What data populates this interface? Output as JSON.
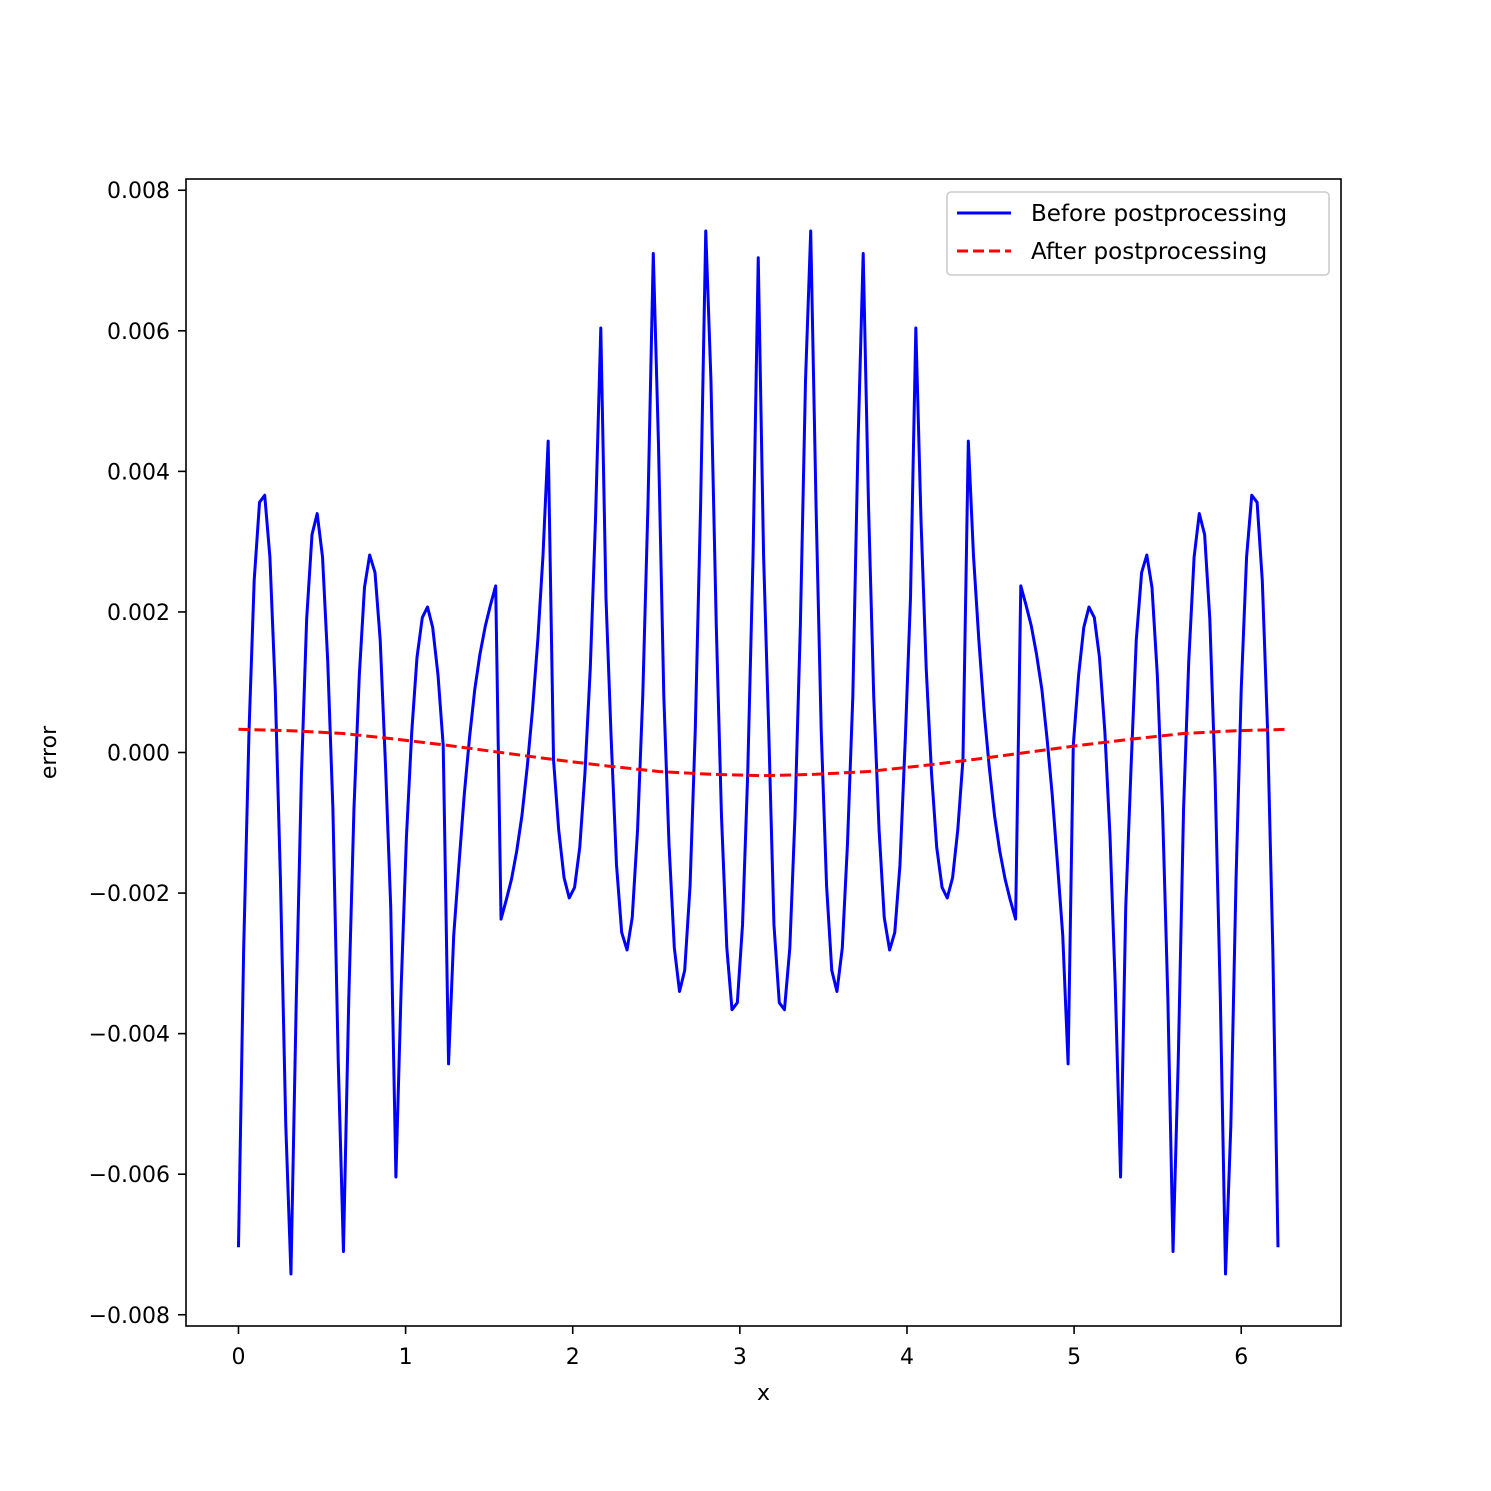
{
  "chart_data": {
    "type": "line",
    "title": "",
    "xlabel": "x",
    "ylabel": "error",
    "xlim": [
      -0.314,
      6.597
    ],
    "ylim": [
      -0.00816,
      0.00816
    ],
    "xticks": [
      0,
      1,
      2,
      3,
      4,
      5,
      6
    ],
    "yticks": [
      -0.008,
      -0.006,
      -0.004,
      -0.002,
      0.0,
      0.002,
      0.004,
      0.006,
      0.008
    ],
    "xtick_labels": [
      "0",
      "1",
      "2",
      "3",
      "4",
      "5",
      "6"
    ],
    "ytick_labels": [
      "−0.008",
      "−0.006",
      "−0.004",
      "−0.002",
      "0.000",
      "0.002",
      "0.004",
      "0.006",
      "0.008"
    ],
    "grid": false,
    "legend_position": "upper right",
    "series": [
      {
        "name": "Before postprocessing",
        "color": "#0000ff",
        "style": "solid",
        "points": [
          [
            0.0,
            -0.00704
          ],
          [
            0.031,
            -0.0028
          ],
          [
            0.063,
            0.0003
          ],
          [
            0.094,
            0.00245
          ],
          [
            0.126,
            0.00356
          ],
          [
            0.157,
            0.00366
          ],
          [
            0.188,
            0.00278
          ],
          [
            0.22,
            0.0009
          ],
          [
            0.251,
            -0.0018
          ],
          [
            0.283,
            -0.0053
          ],
          [
            0.314,
            -0.00742
          ],
          [
            0.346,
            -0.0035
          ],
          [
            0.377,
            -0.0003
          ],
          [
            0.408,
            0.0019
          ],
          [
            0.44,
            0.0031
          ],
          [
            0.471,
            0.0034
          ],
          [
            0.503,
            0.00278
          ],
          [
            0.534,
            0.0013
          ],
          [
            0.565,
            -0.0008
          ],
          [
            0.597,
            -0.0044
          ],
          [
            0.628,
            -0.0071
          ],
          [
            0.66,
            -0.0035
          ],
          [
            0.691,
            -0.0008
          ],
          [
            0.723,
            0.0011
          ],
          [
            0.754,
            0.00235
          ],
          [
            0.785,
            0.00281
          ],
          [
            0.817,
            0.00256
          ],
          [
            0.848,
            0.0016
          ],
          [
            0.88,
            -0.0002
          ],
          [
            0.911,
            -0.0022
          ],
          [
            0.942,
            -0.00604
          ],
          [
            0.974,
            -0.0033
          ],
          [
            1.005,
            -0.0012
          ],
          [
            1.037,
            0.0003
          ],
          [
            1.068,
            0.00135
          ],
          [
            1.1,
            0.00192
          ],
          [
            1.131,
            0.00207
          ],
          [
            1.162,
            0.00178
          ],
          [
            1.194,
            0.0011
          ],
          [
            1.225,
            0.0001
          ],
          [
            1.257,
            -0.00443
          ],
          [
            1.288,
            -0.0026
          ],
          [
            1.319,
            -0.0016
          ],
          [
            1.351,
            -0.0006
          ],
          [
            1.382,
            0.0002
          ],
          [
            1.414,
            0.0009
          ],
          [
            1.445,
            0.0014
          ],
          [
            1.477,
            0.0018
          ],
          [
            1.508,
            0.0021
          ],
          [
            1.539,
            0.00237
          ],
          [
            1.571,
            -0.00237
          ],
          [
            1.602,
            -0.0021
          ],
          [
            1.634,
            -0.0018
          ],
          [
            1.665,
            -0.0014
          ],
          [
            1.696,
            -0.0009
          ],
          [
            1.728,
            -0.0002
          ],
          [
            1.759,
            0.0006
          ],
          [
            1.791,
            0.0016
          ],
          [
            1.822,
            0.0028
          ],
          [
            1.853,
            0.00443
          ],
          [
            1.885,
            -0.0001
          ],
          [
            1.916,
            -0.0011
          ],
          [
            1.948,
            -0.00178
          ],
          [
            1.979,
            -0.00207
          ],
          [
            2.011,
            -0.00192
          ],
          [
            2.042,
            -0.00135
          ],
          [
            2.073,
            -0.0003
          ],
          [
            2.105,
            0.0012
          ],
          [
            2.136,
            0.0033
          ],
          [
            2.168,
            0.00604
          ],
          [
            2.199,
            0.0022
          ],
          [
            2.23,
            0.0002
          ],
          [
            2.262,
            -0.0016
          ],
          [
            2.293,
            -0.00256
          ],
          [
            2.325,
            -0.00281
          ],
          [
            2.356,
            -0.00235
          ],
          [
            2.388,
            -0.0011
          ],
          [
            2.419,
            0.0008
          ],
          [
            2.45,
            0.0035
          ],
          [
            2.482,
            0.0071
          ],
          [
            2.513,
            0.0044
          ],
          [
            2.545,
            0.0008
          ],
          [
            2.576,
            -0.0013
          ],
          [
            2.608,
            -0.00278
          ],
          [
            2.639,
            -0.0034
          ],
          [
            2.67,
            -0.0031
          ],
          [
            2.702,
            -0.0019
          ],
          [
            2.733,
            0.0003
          ],
          [
            2.765,
            0.0035
          ],
          [
            2.796,
            0.00742
          ],
          [
            2.827,
            0.0053
          ],
          [
            2.859,
            0.0018
          ],
          [
            2.89,
            -0.0009
          ],
          [
            2.922,
            -0.00278
          ],
          [
            2.953,
            -0.00366
          ],
          [
            2.985,
            -0.00356
          ],
          [
            3.016,
            -0.00245
          ],
          [
            3.047,
            -0.0003
          ],
          [
            3.079,
            0.0028
          ],
          [
            3.11,
            0.00704
          ],
          [
            3.142,
            0.0028
          ],
          [
            3.173,
            0.0003
          ],
          [
            3.204,
            -0.00245
          ],
          [
            3.236,
            -0.00356
          ],
          [
            3.267,
            -0.00366
          ],
          [
            3.299,
            -0.00278
          ],
          [
            3.33,
            -0.0009
          ],
          [
            3.362,
            0.0018
          ],
          [
            3.393,
            0.0053
          ],
          [
            3.424,
            0.00742
          ],
          [
            3.456,
            0.0035
          ],
          [
            3.487,
            0.0003
          ],
          [
            3.519,
            -0.0019
          ],
          [
            3.55,
            -0.0031
          ],
          [
            3.581,
            -0.0034
          ],
          [
            3.613,
            -0.00278
          ],
          [
            3.644,
            -0.0013
          ],
          [
            3.676,
            0.0008
          ],
          [
            3.707,
            0.0044
          ],
          [
            3.738,
            0.0071
          ],
          [
            3.77,
            0.0035
          ],
          [
            3.801,
            0.0008
          ],
          [
            3.833,
            -0.0011
          ],
          [
            3.864,
            -0.00235
          ],
          [
            3.896,
            -0.00281
          ],
          [
            3.927,
            -0.00256
          ],
          [
            3.958,
            -0.0016
          ],
          [
            3.99,
            0.0002
          ],
          [
            4.021,
            0.0022
          ],
          [
            4.053,
            0.00604
          ],
          [
            4.084,
            0.0033
          ],
          [
            4.115,
            0.0012
          ],
          [
            4.147,
            -0.0003
          ],
          [
            4.178,
            -0.00135
          ],
          [
            4.21,
            -0.00192
          ],
          [
            4.241,
            -0.00207
          ],
          [
            4.273,
            -0.00178
          ],
          [
            4.304,
            -0.0011
          ],
          [
            4.335,
            -0.0001
          ],
          [
            4.367,
            0.00443
          ],
          [
            4.398,
            0.0028
          ],
          [
            4.43,
            0.0016
          ],
          [
            4.461,
            0.0006
          ],
          [
            4.492,
            -0.0002
          ],
          [
            4.524,
            -0.0009
          ],
          [
            4.555,
            -0.0014
          ],
          [
            4.587,
            -0.0018
          ],
          [
            4.618,
            -0.0021
          ],
          [
            4.65,
            -0.00237
          ],
          [
            4.681,
            0.00237
          ],
          [
            4.712,
            0.0021
          ],
          [
            4.744,
            0.0018
          ],
          [
            4.775,
            0.0014
          ],
          [
            4.807,
            0.0009
          ],
          [
            4.838,
            0.0002
          ],
          [
            4.869,
            -0.0006
          ],
          [
            4.901,
            -0.0016
          ],
          [
            4.932,
            -0.0026
          ],
          [
            4.964,
            -0.00443
          ],
          [
            4.995,
            0.0001
          ],
          [
            5.027,
            0.0011
          ],
          [
            5.058,
            0.00178
          ],
          [
            5.089,
            0.00207
          ],
          [
            5.121,
            0.00192
          ],
          [
            5.152,
            0.00135
          ],
          [
            5.184,
            0.0003
          ],
          [
            5.215,
            -0.0012
          ],
          [
            5.246,
            -0.0033
          ],
          [
            5.278,
            -0.00604
          ],
          [
            5.309,
            -0.0022
          ],
          [
            5.341,
            -0.0002
          ],
          [
            5.372,
            0.0016
          ],
          [
            5.404,
            0.00256
          ],
          [
            5.435,
            0.00281
          ],
          [
            5.466,
            0.00235
          ],
          [
            5.498,
            0.0011
          ],
          [
            5.529,
            -0.0008
          ],
          [
            5.561,
            -0.0035
          ],
          [
            5.592,
            -0.0071
          ],
          [
            5.623,
            -0.0044
          ],
          [
            5.655,
            -0.0008
          ],
          [
            5.686,
            0.0013
          ],
          [
            5.718,
            0.00278
          ],
          [
            5.749,
            0.0034
          ],
          [
            5.781,
            0.0031
          ],
          [
            5.812,
            0.0019
          ],
          [
            5.843,
            -0.0003
          ],
          [
            5.875,
            -0.0035
          ],
          [
            5.906,
            -0.00742
          ],
          [
            5.938,
            -0.0053
          ],
          [
            5.969,
            -0.0018
          ],
          [
            6.0,
            0.0009
          ],
          [
            6.032,
            0.00278
          ],
          [
            6.063,
            0.00366
          ],
          [
            6.095,
            0.00356
          ],
          [
            6.126,
            0.00245
          ],
          [
            6.158,
            0.0003
          ],
          [
            6.189,
            -0.0028
          ],
          [
            6.22,
            -0.00704
          ]
        ]
      },
      {
        "name": "After postprocessing",
        "color": "#ff0000",
        "style": "dashed",
        "points": [
          [
            0.0,
            0.00033
          ],
          [
            0.314,
            0.00031
          ],
          [
            0.628,
            0.00027
          ],
          [
            0.942,
            0.00019
          ],
          [
            1.257,
            0.0001
          ],
          [
            1.571,
            0.0
          ],
          [
            1.885,
            -0.0001
          ],
          [
            2.199,
            -0.00019
          ],
          [
            2.513,
            -0.00027
          ],
          [
            2.827,
            -0.00031
          ],
          [
            3.142,
            -0.00033
          ],
          [
            3.456,
            -0.00031
          ],
          [
            3.77,
            -0.00027
          ],
          [
            4.084,
            -0.00019
          ],
          [
            4.398,
            -0.0001
          ],
          [
            4.712,
            0.0
          ],
          [
            5.027,
            0.0001
          ],
          [
            5.341,
            0.00019
          ],
          [
            5.655,
            0.00027
          ],
          [
            5.969,
            0.00031
          ],
          [
            6.283,
            0.00033
          ]
        ]
      }
    ]
  }
}
